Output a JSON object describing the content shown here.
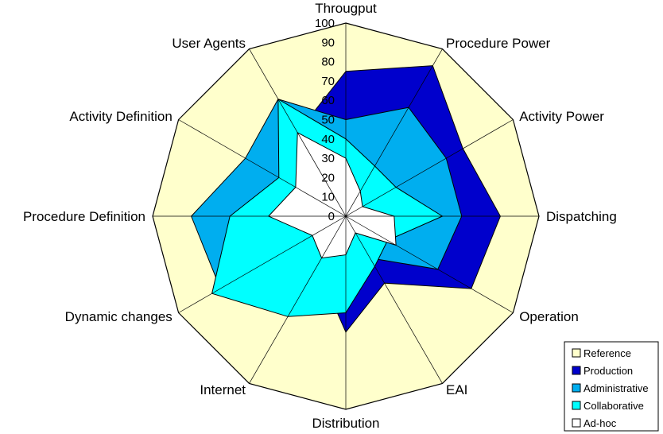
{
  "chart_data": {
    "type": "radar",
    "axes": [
      "Througput",
      "Procedure Power",
      "Activity Power",
      "Dispatching",
      "Operation",
      "EAI",
      "Distribution",
      "Internet",
      "Dynamic changes",
      "Procedure Definition",
      "Activity Definition",
      "User Agents"
    ],
    "rlim": [
      0,
      100
    ],
    "ticks": [
      "0",
      "10",
      "20",
      "30",
      "40",
      "50",
      "60",
      "70",
      "80",
      "90",
      "100"
    ],
    "tick_values": [
      0,
      10,
      20,
      30,
      40,
      50,
      60,
      70,
      80,
      90,
      100
    ],
    "background_color": "#FFFFCC",
    "series": [
      {
        "name": "Production",
        "color": "#0000CC",
        "values": [
          75,
          90,
          70,
          80,
          75,
          40,
          60,
          30,
          35,
          20,
          40,
          50
        ]
      },
      {
        "name": "Administrative",
        "color": "#00AEEF",
        "values": [
          50,
          65,
          60,
          60,
          55,
          25,
          40,
          30,
          75,
          80,
          60,
          70
        ]
      },
      {
        "name": "Collaborative",
        "color": "#00FFFF",
        "values": [
          40,
          30,
          30,
          50,
          25,
          30,
          50,
          60,
          80,
          60,
          40,
          70
        ]
      },
      {
        "name": "Ad-hoc",
        "color": "#FFFFFF",
        "values": [
          30,
          15,
          10,
          25,
          30,
          10,
          20,
          25,
          20,
          40,
          30,
          50
        ]
      },
      {
        "name": "Reference",
        "color": "#FFFFCC",
        "values": [
          100,
          100,
          100,
          100,
          100,
          100,
          100,
          100,
          100,
          100,
          100,
          100
        ]
      }
    ],
    "legend": {
      "position": "bottom-right",
      "entries": [
        {
          "name": "Reference",
          "color": "#FFFFCC"
        },
        {
          "name": "Production",
          "color": "#0000CC"
        },
        {
          "name": "Administrative",
          "color": "#00AEEF"
        },
        {
          "name": "Collaborative",
          "color": "#00FFFF"
        },
        {
          "name": "Ad-hoc",
          "color": "#FFFFFF"
        }
      ]
    }
  }
}
